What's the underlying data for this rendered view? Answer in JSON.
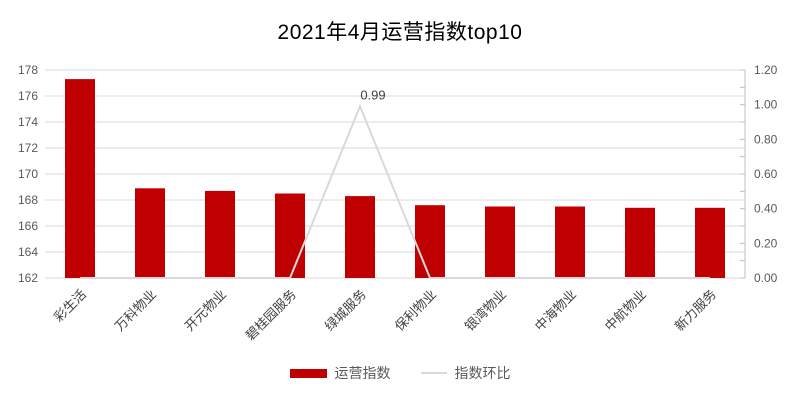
{
  "chart_data": {
    "type": "bar",
    "title": "2021年4月运营指数top10",
    "categories": [
      "彩生活",
      "万科物业",
      "开元物业",
      "碧桂园服务",
      "绿城服务",
      "保利物业",
      "银湾物业",
      "中海物业",
      "中航物业",
      "新力服务"
    ],
    "series": [
      {
        "name": "运营指数",
        "type": "bar",
        "axis": "left",
        "values": [
          177.3,
          168.9,
          168.7,
          168.5,
          168.3,
          167.6,
          167.5,
          167.5,
          167.4,
          167.4
        ]
      },
      {
        "name": "指数环比",
        "type": "line",
        "axis": "right",
        "values": [
          0,
          0,
          0,
          0,
          0.99,
          0,
          0,
          0,
          0,
          0
        ]
      }
    ],
    "left_axis": {
      "min": 162,
      "max": 178,
      "step": 2,
      "ticks": [
        162,
        164,
        166,
        168,
        170,
        172,
        174,
        176,
        178
      ]
    },
    "right_axis": {
      "min": 0,
      "max": 1.2,
      "step": 0.2,
      "minor_step": 0.1,
      "ticks": [
        0.0,
        0.2,
        0.4,
        0.6,
        0.8,
        1.0,
        1.2
      ],
      "decimals": 2
    },
    "annotations": [
      {
        "series": "指数环比",
        "category_index": 4,
        "value": 0.99,
        "text": "0.99"
      }
    ],
    "legend_position": "bottom",
    "grid": true,
    "colors": {
      "bar": "#c00000",
      "line": "#d9d9d9",
      "grid": "#d9d9d9",
      "axis_line": "#bfbfbf",
      "tick_label": "#595959",
      "category_label": "#404040",
      "annotation": "#404040",
      "title": "#000000",
      "legend_text": "#595959"
    }
  }
}
